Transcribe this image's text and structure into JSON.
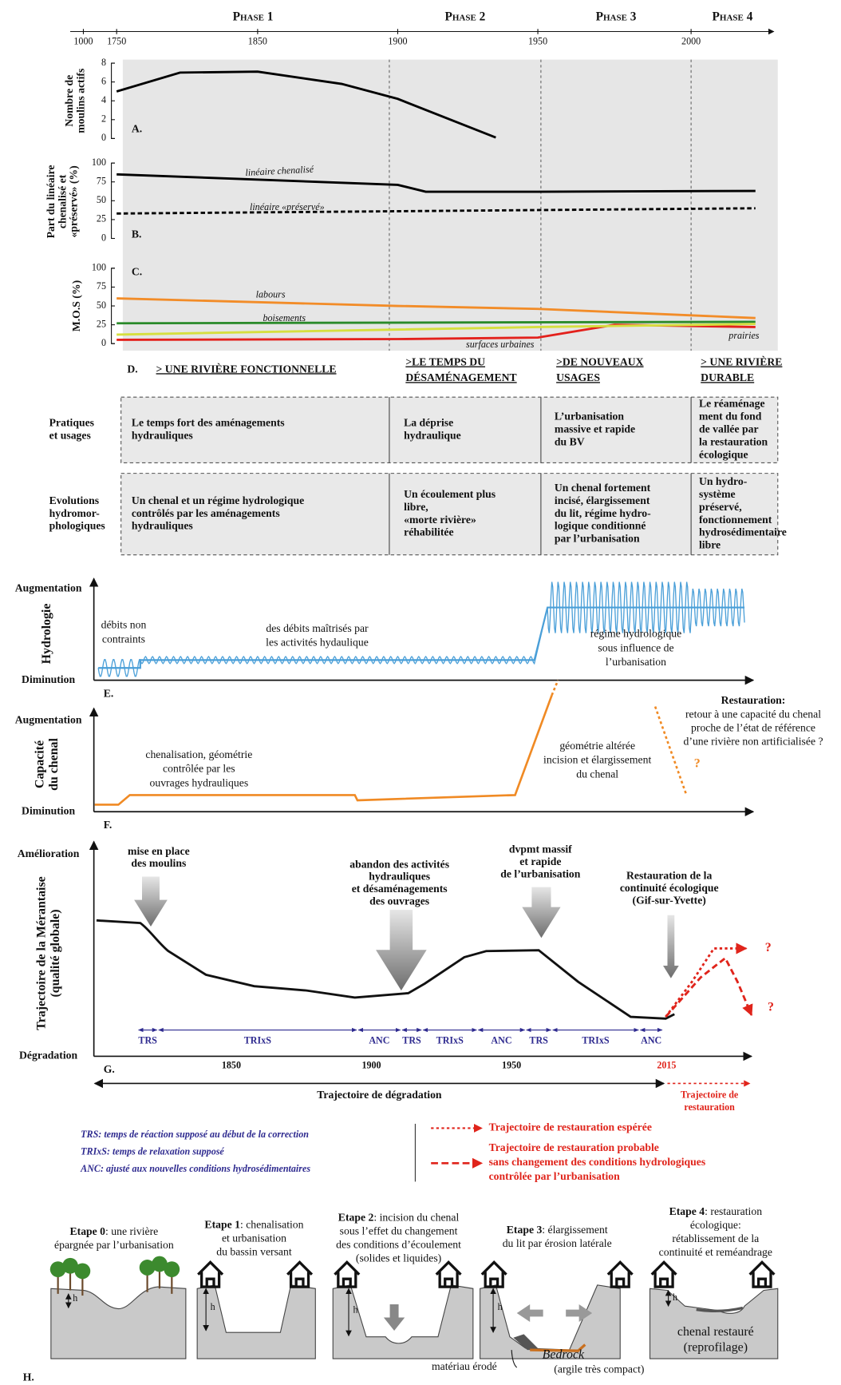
{
  "timeline": {
    "phases": [
      "Phase 1",
      "Phase 2",
      "Phase 3",
      "Phase 4"
    ],
    "xlim": [
      1000,
      2027
    ],
    "xticks": [
      1000,
      1750,
      1850,
      1900,
      1950,
      2000
    ],
    "phase_starts": [
      1897,
      1951,
      2000
    ]
  },
  "chart_data": [
    {
      "type": "line",
      "panel": "A.",
      "ylabel": [
        "Nombre de",
        "moulins actifs"
      ],
      "ylim": [
        0,
        8
      ],
      "yticks": [
        0,
        2,
        4,
        6,
        8
      ],
      "series": [
        {
          "color": "#000000",
          "x": [
            1750,
            1795,
            1850,
            1880,
            1900,
            1935
          ],
          "values": [
            5.0,
            7.0,
            7.1,
            5.8,
            4.2,
            0.1
          ]
        }
      ]
    },
    {
      "type": "line",
      "panel": "B.",
      "ylabel": [
        "Part du linéaire",
        "chenalisé et",
        "«préservé» (%)"
      ],
      "ylim": [
        0,
        100
      ],
      "yticks": [
        0,
        25,
        50,
        75,
        100
      ],
      "series": [
        {
          "name": "linéaire chenalisé",
          "color": "#000000",
          "dash": false,
          "x": [
            1750,
            1900,
            1910,
            1950,
            2021
          ],
          "values": [
            85,
            71,
            62,
            62,
            63
          ]
        },
        {
          "name": "linéaire «préservé»",
          "color": "#000000",
          "dash": true,
          "x": [
            1750,
            2021
          ],
          "values": [
            33,
            40
          ]
        }
      ]
    },
    {
      "type": "line",
      "panel": "C.",
      "ylabel": [
        "M.O.S (%)"
      ],
      "ylim": [
        0,
        100
      ],
      "yticks": [
        0,
        25,
        50,
        75,
        100
      ],
      "series": [
        {
          "name": "labours",
          "color": "#f28c28",
          "x": [
            1750,
            1900,
            1950,
            2021
          ],
          "values": [
            60,
            50,
            46,
            34
          ]
        },
        {
          "name": "boisements",
          "color": "#2a8a2a",
          "x": [
            1750,
            2021
          ],
          "values": [
            27,
            29
          ]
        },
        {
          "name": "surfaces urbaines",
          "color": "#e3211c",
          "x": [
            1750,
            1900,
            1950,
            1975,
            2021
          ],
          "values": [
            5,
            6,
            8,
            25,
            22
          ]
        },
        {
          "name": "prairies",
          "color": "#d6df3f",
          "x": [
            1750,
            1950,
            2021
          ],
          "values": [
            12,
            22,
            26
          ]
        }
      ]
    }
  ],
  "table": {
    "panel": "D.",
    "columns": [
      [
        "> UNE RIVIÈRE FONCTIONNELLE"
      ],
      [
        ">LE TEMPS DU",
        "DÉSAMÉNAGEMENT"
      ],
      [
        ">DE NOUVEAUX",
        "USAGES"
      ],
      [
        "> UNE RIVIÈRE",
        "DURABLE"
      ]
    ],
    "rows": [
      {
        "label": [
          "Pratiques",
          "et usages"
        ],
        "cells": [
          [
            "Le temps fort des aménagements",
            "hydrauliques"
          ],
          [
            "La déprise",
            "hydraulique"
          ],
          [
            "L’urbanisation",
            "massive et rapide",
            "du BV"
          ],
          [
            "Le réaménage",
            "ment du fond",
            "de vallée par",
            "la restauration",
            "écologique"
          ]
        ]
      },
      {
        "label": [
          "Evolutions",
          "hydromor-",
          "phologiques"
        ],
        "cells": [
          [
            "Un chenal et un régime hydrologique",
            "contrôlés par les aménagements",
            "hydrauliques"
          ],
          [
            "Un écoulement plus",
            "libre,",
            "«morte rivière»",
            "réhabilitée"
          ],
          [
            "Un chenal fortement",
            "incisé, élargissement",
            "du lit, régime hydro-",
            "logique conditionné",
            "par l’urbanisation"
          ],
          [
            "Un hydro-",
            "système",
            "préservé,",
            "fonctionnement",
            "hydrosédimentaire",
            "libre"
          ]
        ]
      }
    ]
  },
  "hydrology": {
    "panel": "E.",
    "axis_title": [
      "Hydrologie"
    ],
    "top": "Augmentation",
    "bottom": "Diminution",
    "notes": [
      [
        "débits non",
        "contraints"
      ],
      [
        "des débits maîtrisés par",
        "les activités hydaulique"
      ],
      [
        "régime hydrologique",
        "sous influence de",
        "l’urbanisation"
      ]
    ]
  },
  "capacity": {
    "panel": "F.",
    "axis_title": [
      "Capacité",
      "du chenal"
    ],
    "top": "Augmentation",
    "bottom": "Diminution",
    "notes": [
      [
        "chenalisation, géométrie",
        "contrôlée par les",
        "ouvrages hydrauliques"
      ],
      [
        "géométrie altérée",
        "incision et élargissement",
        "du chenal"
      ]
    ],
    "restoration": {
      "title": "Restauration:",
      "lines": [
        "retour à une capacité du chenal",
        "proche de l’état de référence",
        "d’une rivière non artificialisée ?"
      ],
      "question": "?"
    }
  },
  "trajectory": {
    "panel": "G.",
    "axis_title": [
      "Trajectoire de la Mérantaise",
      "(qualité globale)"
    ],
    "top": "Amélioration",
    "bottom": "Dégradation",
    "events": [
      [
        "mise en place",
        "des moulins"
      ],
      [
        "abandon des activités",
        "hydrauliques",
        "et désaménagements",
        "des ouvrages"
      ],
      [
        "dvpmt massif",
        "et rapide",
        "de l’urbanisation"
      ],
      [
        "Restauration de la",
        "continuité écologique",
        "(Gif-sur-Yvette)"
      ]
    ],
    "periods": [
      "TRS",
      "TRIxS",
      "ANC",
      "TRS",
      "TRIxS",
      "ANC",
      "TRS",
      "TRIxS",
      "ANC"
    ],
    "years": [
      "1850",
      "1900",
      "1950",
      "2015"
    ],
    "degradation": "Trajectoire de dégradation",
    "restoration": [
      "Trajectoire de",
      "restauration"
    ],
    "question": "?"
  },
  "legend": {
    "left": [
      "TRS: temps de réaction supposé au début de la correction",
      "TRIxS: temps de relaxation supposé",
      "ANC: ajusté aux nouvelles conditions hydrosédimentaires"
    ],
    "hoped": "Trajectoire de restauration espérée",
    "probable": [
      "Trajectoire de restauration probable",
      "sans changement des conditions hydrologiques",
      "contrôlée par l’urbanisation"
    ]
  },
  "stages": {
    "panel": "H.",
    "h": "h",
    "items": [
      {
        "title": "Etape 0",
        "lines": [
          ": une rivière",
          "épargnée par l’urbanisation"
        ]
      },
      {
        "title": "Etape 1",
        "lines": [
          ": chenalisation",
          "et urbanisation",
          "du bassin versant"
        ]
      },
      {
        "title": "Etape 2",
        "lines": [
          ": incision du chenal",
          "sous l’effet du changement",
          "des conditions d’écoulement",
          "(solides et liquides)"
        ]
      },
      {
        "title": "Etape 3",
        "lines": [
          ": élargissement",
          "du lit par érosion latérale"
        ]
      },
      {
        "title": "Etape 4",
        "lines": [
          ": restauration",
          "écologique:",
          "rétablissement de la",
          "continuité et reméandrage"
        ]
      }
    ],
    "restored": [
      "chenal restauré",
      "(reprofilage)"
    ],
    "bedrock": [
      "Bedrock",
      "(argile très compact)"
    ],
    "eroded": "matériau érodé"
  }
}
